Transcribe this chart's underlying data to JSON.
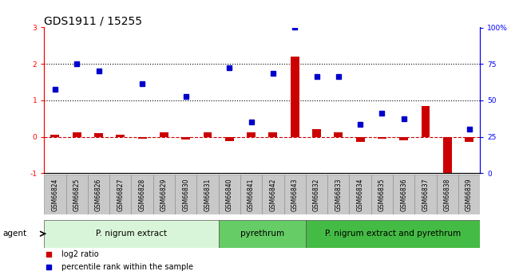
{
  "title": "GDS1911 / 15255",
  "samples": [
    "GSM66824",
    "GSM66825",
    "GSM66826",
    "GSM66827",
    "GSM66828",
    "GSM66829",
    "GSM66830",
    "GSM66831",
    "GSM66840",
    "GSM66841",
    "GSM66842",
    "GSM66843",
    "GSM66832",
    "GSM66833",
    "GSM66834",
    "GSM66835",
    "GSM66836",
    "GSM66837",
    "GSM66838",
    "GSM66839"
  ],
  "log2_ratio": [
    0.05,
    0.12,
    0.1,
    0.05,
    -0.05,
    0.12,
    -0.08,
    0.12,
    -0.12,
    0.12,
    0.12,
    2.2,
    0.2,
    0.12,
    -0.15,
    -0.05,
    -0.1,
    0.85,
    -1.0,
    -0.15
  ],
  "percentile": [
    1.3,
    2.0,
    1.8,
    null,
    1.45,
    null,
    1.1,
    null,
    1.9,
    0.4,
    1.75,
    3.0,
    1.65,
    1.65,
    0.35,
    0.65,
    0.5,
    null,
    null,
    0.2
  ],
  "groups": [
    {
      "label": "P. nigrum extract",
      "start": 0,
      "end": 8,
      "color": "#d9f5d9"
    },
    {
      "label": "pyrethrum",
      "start": 8,
      "end": 12,
      "color": "#66cc66"
    },
    {
      "label": "P. nigrum extract and pyrethrum",
      "start": 12,
      "end": 20,
      "color": "#44bb44"
    }
  ],
  "ylim_left": [
    -1,
    3
  ],
  "ylim_right": [
    0,
    100
  ],
  "yticks_left": [
    -1,
    0,
    1,
    2,
    3
  ],
  "yticks_right": [
    0,
    25,
    50,
    75,
    100
  ],
  "ytick_labels_right": [
    "0",
    "25",
    "50",
    "75",
    "100%"
  ],
  "hlines": [
    2.0,
    1.0
  ],
  "bar_color": "#cc0000",
  "dot_color": "#0000cc",
  "zero_line_color": "#cc0000",
  "bg_color": "#ffffff",
  "title_fontsize": 10,
  "tick_fontsize": 6.5,
  "label_fontsize": 7.5,
  "legend_fontsize": 7,
  "xtick_fontsize": 5.5,
  "agent_label": "agent"
}
